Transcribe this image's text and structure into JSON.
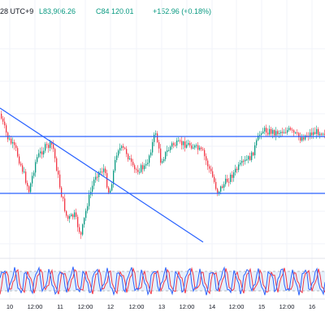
{
  "header": {
    "symbol_time": "28 UTC+9",
    "low": "L83,906.26",
    "close": "C84,120.01",
    "change": "+152.96 (+0.18%)"
  },
  "colors": {
    "up": "#089981",
    "down": "#f23645",
    "trendline": "#2962ff",
    "stoch_k": "#2962ff",
    "stoch_d": "#f23645",
    "stoch_band": "#e6f0fb"
  },
  "xaxis": {
    "labels": [
      "10",
      "12:00",
      "11",
      "12:00",
      "12",
      "12:00",
      "13",
      "12:00",
      "14",
      "12:00",
      "15",
      "12:00",
      "16"
    ]
  },
  "chart_data": {
    "type": "candlestick",
    "x": [
      "10",
      "12:00",
      "11",
      "12:00",
      "12",
      "12:00",
      "13",
      "12:00",
      "14",
      "12:00",
      "15",
      "12:00",
      "16"
    ],
    "horizontal_lines": [
      "upper",
      "lower"
    ],
    "oscillator": {
      "type": "stochastic",
      "bands": [
        "upper",
        "lower"
      ]
    }
  }
}
